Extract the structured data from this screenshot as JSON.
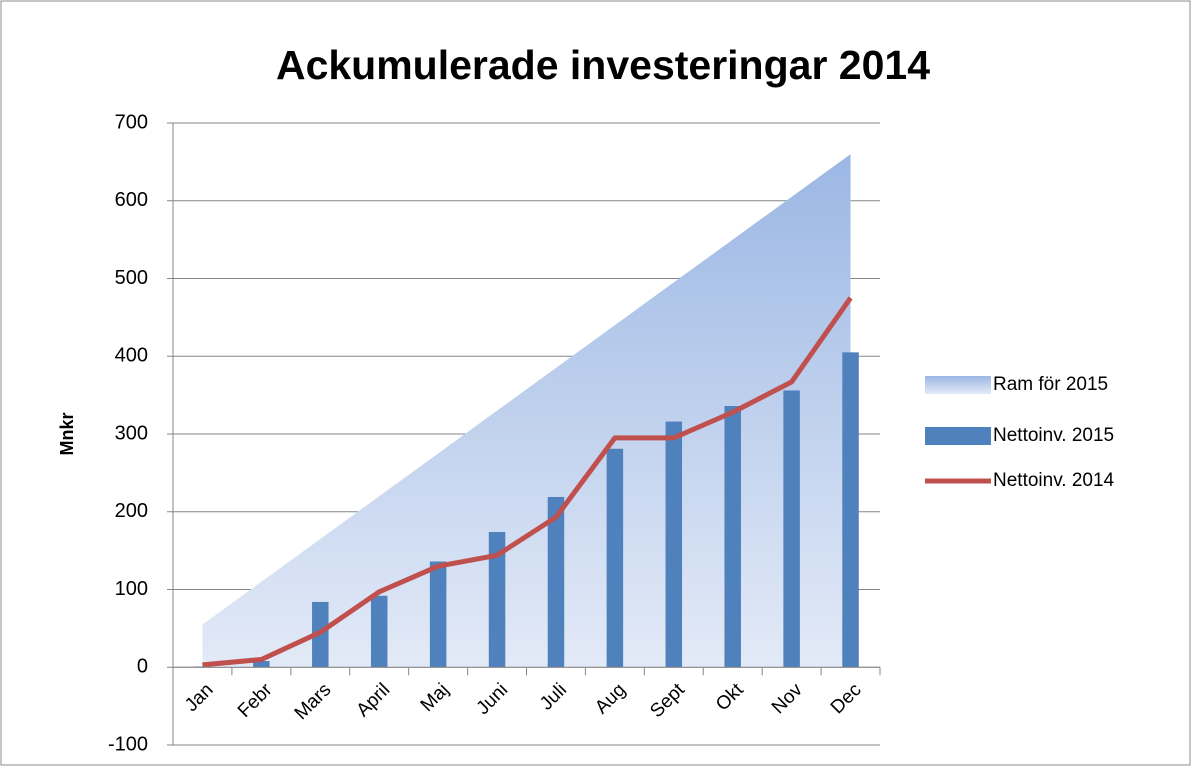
{
  "chart_data": {
    "type": "combo",
    "title": "Ackumulerade investeringar 2014",
    "y_label": "Mnkr",
    "categories": [
      "Jan",
      "Febr",
      "Mars",
      "April",
      "Maj",
      "Juni",
      "Juli",
      "Aug",
      "Sept",
      "Okt",
      "Nov",
      "Dec"
    ],
    "series": [
      {
        "name": "Ram för 2015",
        "type": "area",
        "color": "#9bb7e4",
        "values": [
          55,
          110,
          165,
          220,
          275,
          330,
          385,
          440,
          495,
          550,
          605,
          660
        ]
      },
      {
        "name": "Nettoinv. 2015",
        "type": "bar",
        "color": "#4f81bd",
        "values": [
          1,
          8,
          84,
          92,
          136,
          174,
          219,
          281,
          316,
          336,
          356,
          405
        ]
      },
      {
        "name": "Nettoinv. 2014",
        "type": "line",
        "color": "#c0504d",
        "values": [
          3,
          10,
          45,
          97,
          130,
          144,
          193,
          295,
          295,
          328,
          367,
          475
        ]
      }
    ],
    "ylim": [
      -100,
      700
    ],
    "yticks": [
      -100,
      0,
      100,
      200,
      300,
      400,
      500,
      600,
      700
    ],
    "grid": true,
    "legend": "right"
  }
}
